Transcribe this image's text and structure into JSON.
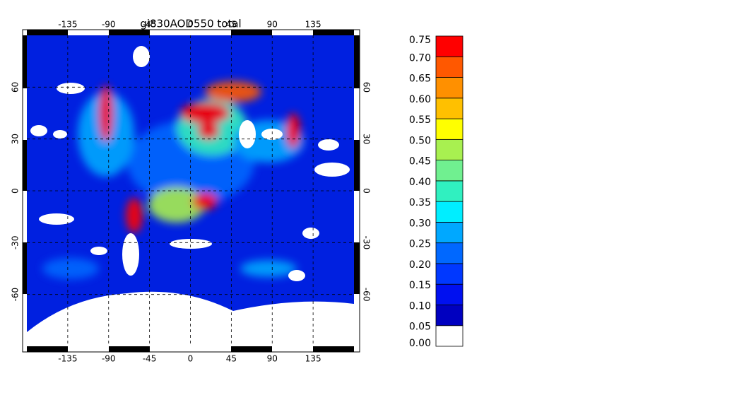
{
  "chart_data": {
    "type": "map",
    "title": "gi830AOD550 total",
    "xlim": [
      -180,
      180
    ],
    "ylim": [
      -90,
      90
    ],
    "xticks": [
      -135,
      -90,
      -45,
      0,
      45,
      90,
      135
    ],
    "yticks": [
      -60,
      -30,
      0,
      30,
      60
    ],
    "grid": true,
    "colorbar": {
      "levels": [
        {
          "value": 0,
          "label": "0.00"
        },
        {
          "value": 0.05,
          "label": "0.05"
        },
        {
          "value": 0.1,
          "label": "0.10"
        },
        {
          "value": 0.15,
          "label": "0.15"
        },
        {
          "value": 0.2,
          "label": "0.20"
        },
        {
          "value": 0.25,
          "label": "0.25"
        },
        {
          "value": 0.3,
          "label": "0.30"
        },
        {
          "value": 0.35,
          "label": "0.35"
        },
        {
          "value": 0.4,
          "label": "0.40"
        },
        {
          "value": 0.45,
          "label": "0.45"
        },
        {
          "value": 0.5,
          "label": "0.50"
        },
        {
          "value": 0.55,
          "label": "0.55"
        },
        {
          "value": 0.6,
          "label": "0.60"
        },
        {
          "value": 0.65,
          "label": "0.65"
        },
        {
          "value": 0.7,
          "label": "0.70"
        },
        {
          "value": 0.75,
          "label": "0.75"
        }
      ],
      "colors": [
        "#ffffff",
        "#0000c0",
        "#0010f0",
        "#0038ff",
        "#0068ff",
        "#00a8ff",
        "#00eeff",
        "#30f0c0",
        "#70f090",
        "#a8f050",
        "#ffff00",
        "#ffc000",
        "#ff9000",
        "#ff5800",
        "#ff0000"
      ]
    }
  }
}
